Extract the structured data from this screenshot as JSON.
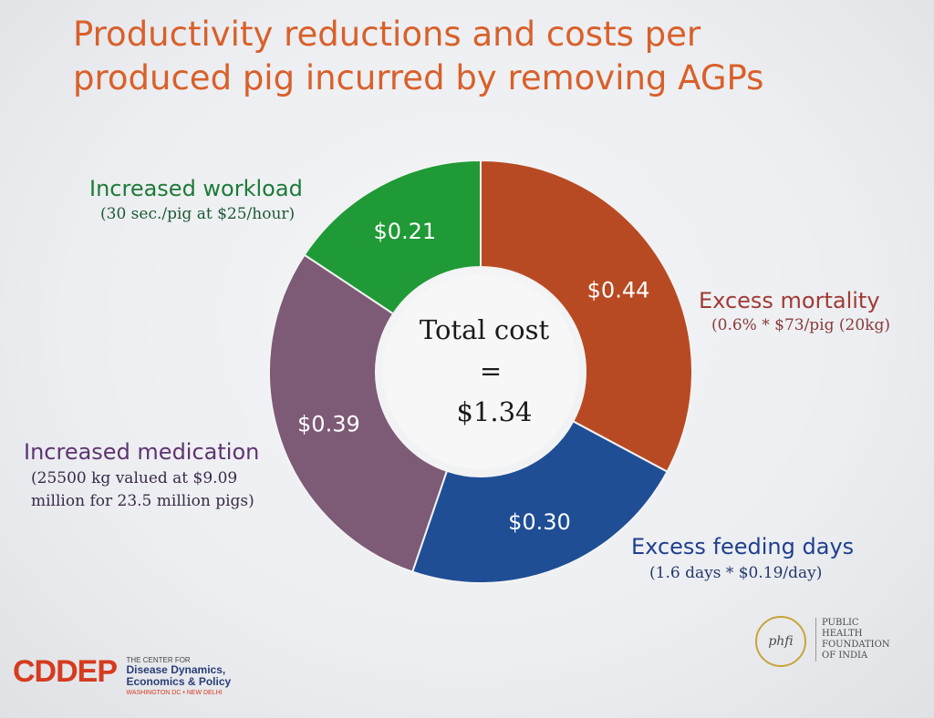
{
  "title_lines": [
    "Productivity reductions and costs per",
    "produced pig incurred by removing AGPs"
  ],
  "center": {
    "line1": "Total cost",
    "line2": "=",
    "line3": "$1.34"
  },
  "chart_data": {
    "type": "pie",
    "donut": true,
    "title": "Productivity reductions and costs per produced pig incurred by removing AGPs",
    "total_label": "$1.34",
    "slices": [
      {
        "name": "Excess mortality",
        "value": 0.44,
        "label": "$0.44",
        "note": "(0.6% * $73/pig (20kg)",
        "color": "#b84a23",
        "label_color": "#a03a35"
      },
      {
        "name": "Excess feeding days",
        "value": 0.3,
        "label": "$0.30",
        "note": "(1.6 days * $0.19/day)",
        "color": "#1f4e95",
        "label_color": "#1f3f8c"
      },
      {
        "name": "Increased medication",
        "value": 0.39,
        "label": "$0.39",
        "note": "(25500 kg valued at $9.09 million for 23.5 million pigs)",
        "color": "#7d5a76",
        "label_color": "#5e3470"
      },
      {
        "name": "Increased workload",
        "value": 0.21,
        "label": "$0.21",
        "note": "(30 sec./pig at $25/hour)",
        "color": "#1f9a36",
        "label_color": "#1d7a38"
      }
    ]
  },
  "external_labels": {
    "mortality": {
      "head": "Excess mortality",
      "sub": "(0.6% * $73/pig (20kg)"
    },
    "feeding": {
      "head": "Excess feeding days",
      "sub": "(1.6 days * $0.19/day)"
    },
    "medication": {
      "head": "Increased medication",
      "sub1": "(25500 kg valued at $9.09",
      "sub2": "million for 23.5 million pigs)"
    },
    "workload": {
      "head": "Increased workload",
      "sub": "(30 sec./pig at $25/hour)"
    }
  },
  "logos": {
    "cddep": {
      "mark": "CDDEP",
      "line1": "THE CENTER FOR",
      "line2": "Disease Dynamics,",
      "line3": "Economics & Policy",
      "line4": "WASHINGTON DC • NEW DELHI"
    },
    "phfi": {
      "mark": "phfi",
      "line1": "PUBLIC",
      "line2": "HEALTH",
      "line3": "FOUNDATION",
      "line4": "OF INDIA"
    }
  }
}
